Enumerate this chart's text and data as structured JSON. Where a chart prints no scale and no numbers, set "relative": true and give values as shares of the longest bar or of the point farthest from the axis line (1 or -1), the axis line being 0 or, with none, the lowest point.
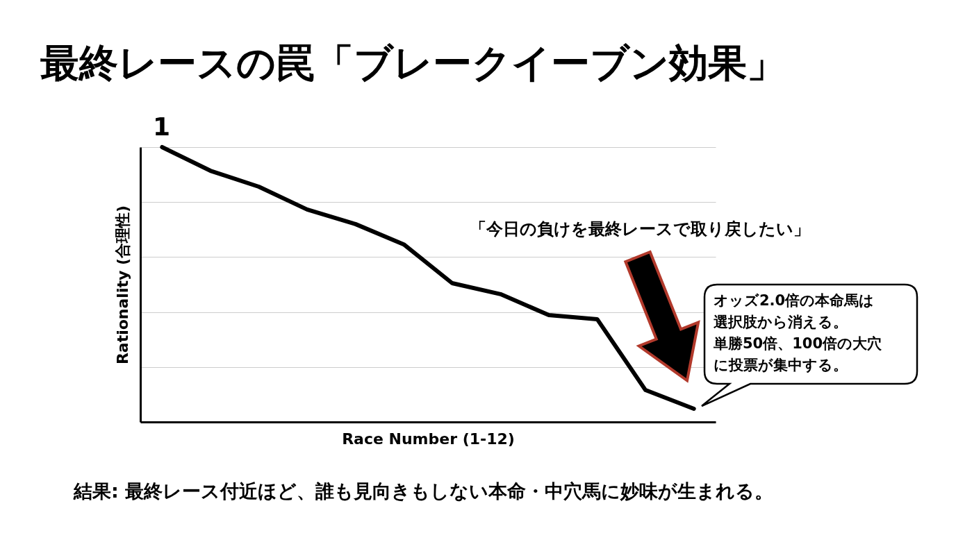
{
  "chart_data": {
    "type": "line",
    "title": "最終レースの罠「ブレークイーブン効果」",
    "xlabel": "Race Number (1-12)",
    "ylabel": "Rationality (合理性)",
    "categories": [
      null,
      null,
      null,
      null,
      null,
      null,
      null,
      null,
      null,
      null,
      null,
      null
    ],
    "relative": true,
    "grid": "y",
    "marker": "none",
    "line_style": "solid",
    "series": [
      {
        "color": "#000000",
        "values": [
          1,
          0.914,
          0.856,
          0.773,
          0.72,
          0.646,
          0.505,
          0.465,
          0.389,
          0.374,
          0.116,
          0.048
        ]
      }
    ],
    "annotations": [
      "1",
      "「今日の負けを最終レースで取り戻したい」",
      "オッズ2.0倍の本命馬は",
      "選択肢から消える。",
      "単勝50倍、100倍の大穴",
      "に投票が集中する。",
      "結果: 最終レース付近ほど、誰も見向きもしない本命・中穴馬に妙味が生まれる。"
    ]
  }
}
